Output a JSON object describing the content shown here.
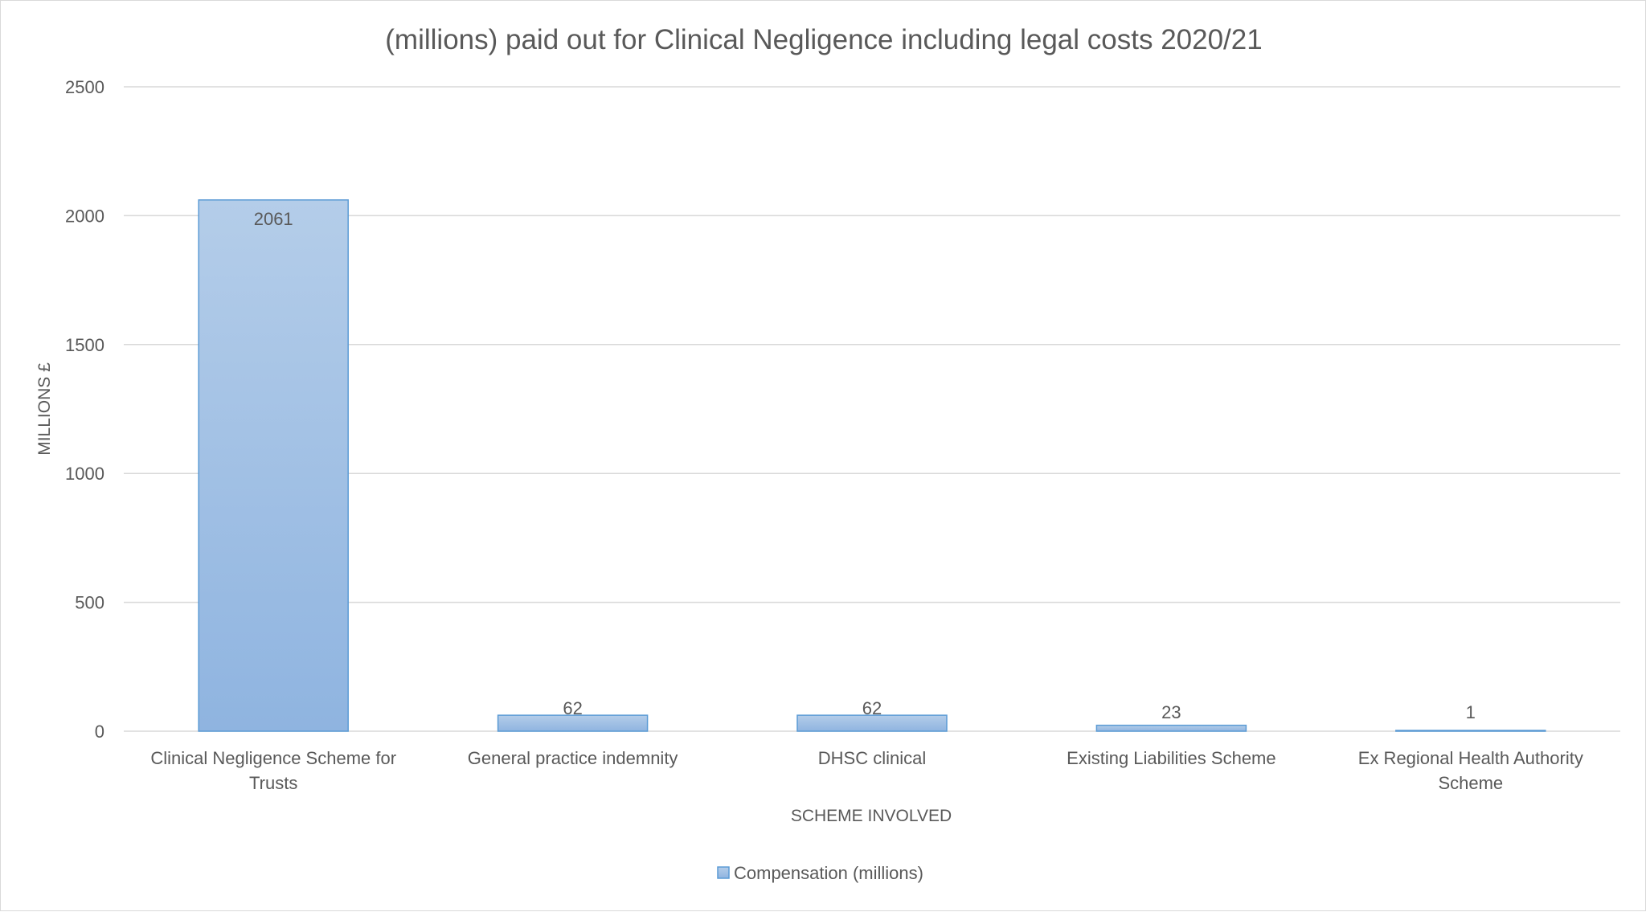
{
  "chart_data": {
    "type": "bar",
    "title": "(millions) paid out for Clinical Negligence including legal costs  2020/21",
    "xlabel": "SCHEME INVOLVED",
    "ylabel": "MILLIONS £",
    "ylim": [
      0,
      2500
    ],
    "yticks": [
      0,
      500,
      1000,
      1500,
      2000,
      2500
    ],
    "categories": [
      [
        "Clinical Negligence Scheme for",
        "Trusts"
      ],
      [
        "General practice indemnity"
      ],
      [
        "DHSC clinical"
      ],
      [
        "Existing Liabilities Scheme"
      ],
      [
        "Ex Regional Health Authority",
        "Scheme"
      ]
    ],
    "series": [
      {
        "name": "Compensation (millions)",
        "values": [
          2061,
          62,
          62,
          23,
          1
        ]
      }
    ],
    "data_labels": true,
    "grid": true,
    "legend": "bottom",
    "colors": {
      "bar_top": "#b4cde9",
      "bar_bottom": "#8fb4e0",
      "bar_border": "#5b9bd5",
      "grid": "#d9d9d9",
      "text": "#595959"
    }
  }
}
